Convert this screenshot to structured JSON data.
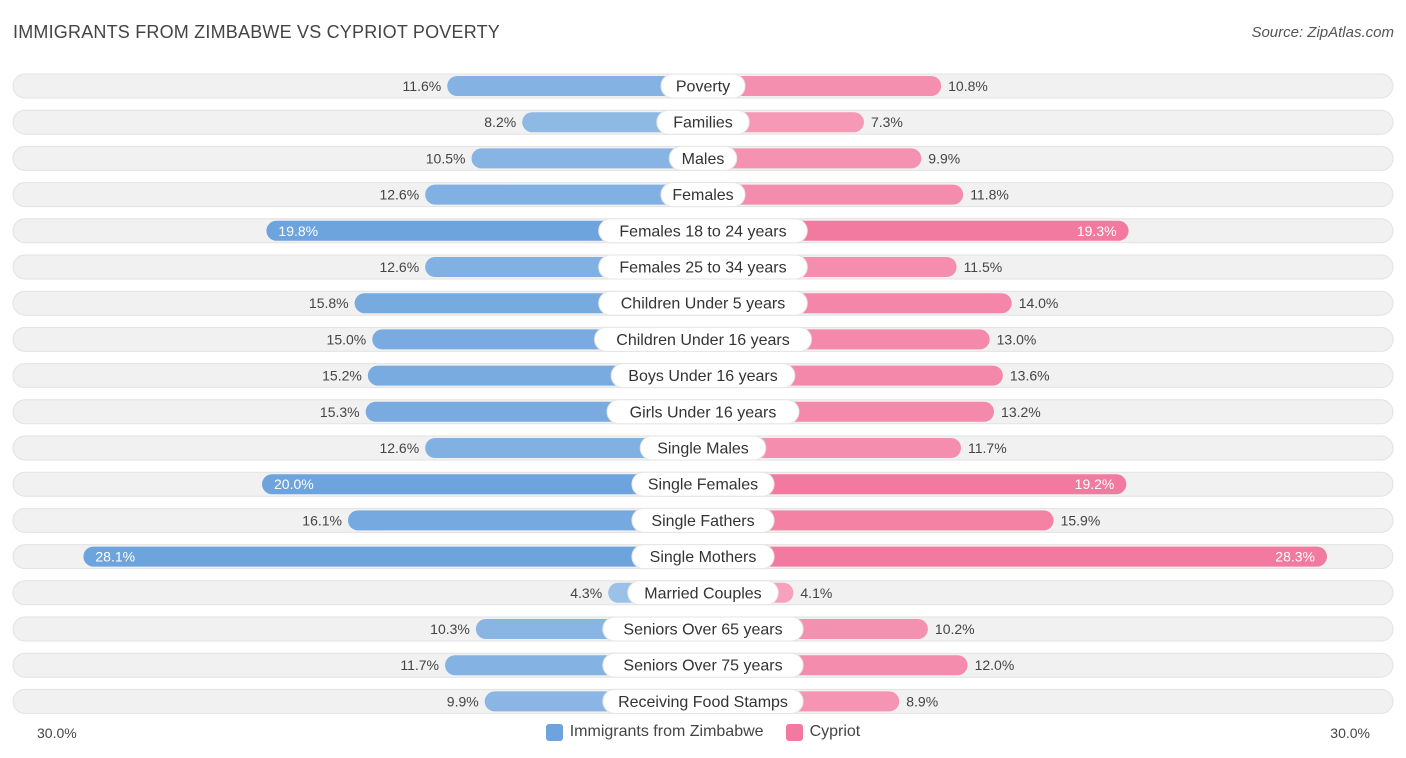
{
  "title": "IMMIGRANTS FROM ZIMBABWE VS CYPRIOT POVERTY",
  "source": "Source: ZipAtlas.com",
  "colors": {
    "left": "#6ea4dd",
    "left_light": "#a9c9ec",
    "right": "#f27aa0",
    "right_light": "#f8acc4",
    "track": "#eeeeee"
  },
  "axis": {
    "left_label": "30.0%",
    "right_label": "30.0%"
  },
  "legend": {
    "left": "Immigrants from Zimbabwe",
    "right": "Cypriot"
  },
  "chart_data": {
    "type": "bar",
    "orientation": "horizontal-diverging",
    "title": "IMMIGRANTS FROM ZIMBABWE VS CYPRIOT POVERTY",
    "xlim": [
      -30,
      30
    ],
    "categories": [
      "Poverty",
      "Families",
      "Males",
      "Females",
      "Females 18 to 24 years",
      "Females 25 to 34 years",
      "Children Under 5 years",
      "Children Under 16 years",
      "Boys Under 16 years",
      "Girls Under 16 years",
      "Single Males",
      "Single Females",
      "Single Fathers",
      "Single Mothers",
      "Married Couples",
      "Seniors Over 65 years",
      "Seniors Over 75 years",
      "Receiving Food Stamps"
    ],
    "series": [
      {
        "name": "Immigrants from Zimbabwe",
        "values": [
          11.6,
          8.2,
          10.5,
          12.6,
          19.8,
          12.6,
          15.8,
          15.0,
          15.2,
          15.3,
          12.6,
          20.0,
          16.1,
          28.1,
          4.3,
          10.3,
          11.7,
          9.9
        ]
      },
      {
        "name": "Cypriot",
        "values": [
          10.8,
          7.3,
          9.9,
          11.8,
          19.3,
          11.5,
          14.0,
          13.0,
          13.6,
          13.2,
          11.7,
          19.2,
          15.9,
          28.3,
          4.1,
          10.2,
          12.0,
          8.9
        ]
      }
    ],
    "value_labels_left": [
      "11.6%",
      "8.2%",
      "10.5%",
      "12.6%",
      "19.8%",
      "12.6%",
      "15.8%",
      "15.0%",
      "15.2%",
      "15.3%",
      "12.6%",
      "20.0%",
      "16.1%",
      "28.1%",
      "4.3%",
      "10.3%",
      "11.7%",
      "9.9%"
    ],
    "value_labels_right": [
      "10.8%",
      "7.3%",
      "9.9%",
      "11.8%",
      "19.3%",
      "11.5%",
      "14.0%",
      "13.0%",
      "13.6%",
      "13.2%",
      "11.7%",
      "19.2%",
      "15.9%",
      "28.3%",
      "4.1%",
      "10.2%",
      "12.0%",
      "8.9%"
    ]
  }
}
